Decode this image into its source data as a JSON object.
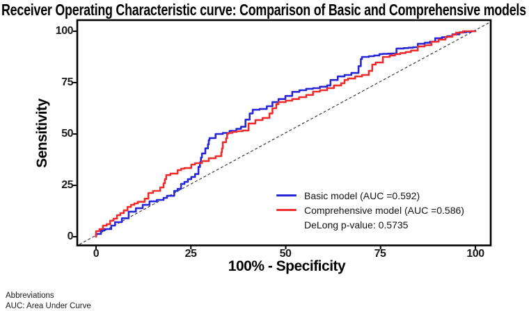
{
  "chart_data": {
    "type": "line",
    "subtype": "roc-curve",
    "title": "Receiver Operating Characteristic curve: Comparison of Basic and Comprehensive models",
    "xlabel": "100% - Specificity",
    "ylabel": "Sensitivity",
    "xlim": [
      -5,
      104
    ],
    "ylim": [
      -4,
      105
    ],
    "x_tick_values": [
      0,
      25,
      50,
      75,
      100
    ],
    "y_tick_values": [
      0,
      25,
      50,
      75,
      100
    ],
    "x_tick_labels": [
      "0",
      "25",
      "50",
      "75",
      "100"
    ],
    "y_tick_labels": [
      "0",
      "25",
      "50",
      "75",
      "100"
    ],
    "grid": false,
    "reference_line": {
      "description": "diagonal chance line y = x",
      "style": "dashed",
      "color": "#3a3a3a"
    },
    "legend": {
      "position": "bottom-right",
      "note": "DeLong p-value: 0.5735"
    },
    "delong_p_value": "0.5735",
    "series": [
      {
        "name": "Basic model",
        "auc": "0.592",
        "label": "Basic model (AUC =0.592)",
        "color": "#2626d6",
        "points": [
          [
            0,
            0
          ],
          [
            1.3,
            1.4
          ],
          [
            2.2,
            3
          ],
          [
            4,
            3.7
          ],
          [
            5,
            5.4
          ],
          [
            6.8,
            7.1
          ],
          [
            8.6,
            9
          ],
          [
            10.5,
            12.2
          ],
          [
            12.3,
            13.9
          ],
          [
            14.1,
            15.5
          ],
          [
            16,
            17.2
          ],
          [
            17.8,
            17.9
          ],
          [
            18.7,
            18.9
          ],
          [
            20.6,
            19.9
          ],
          [
            21.5,
            22.3
          ],
          [
            22.4,
            23.3
          ],
          [
            23.3,
            25.7
          ],
          [
            24.2,
            26.7
          ],
          [
            25.1,
            28
          ],
          [
            26.1,
            29.1
          ],
          [
            27,
            30.5
          ],
          [
            27.4,
            34
          ],
          [
            27.9,
            38.5
          ],
          [
            28.8,
            40.5
          ],
          [
            29.5,
            43
          ],
          [
            29.9,
            47
          ],
          [
            31.5,
            48
          ],
          [
            33.4,
            50
          ],
          [
            35.2,
            50.5
          ],
          [
            37,
            51.5
          ],
          [
            39.4,
            53.5
          ],
          [
            40.5,
            57
          ],
          [
            41.3,
            60
          ],
          [
            43.1,
            61.8
          ],
          [
            45,
            62.2
          ],
          [
            46.5,
            63.5
          ],
          [
            48.1,
            65.5
          ],
          [
            49.9,
            67
          ],
          [
            51.7,
            68.5
          ],
          [
            53.6,
            70.5
          ],
          [
            55.4,
            71.3
          ],
          [
            57.2,
            72
          ],
          [
            59,
            72.3
          ],
          [
            60.9,
            73
          ],
          [
            61.8,
            73.6
          ],
          [
            63.7,
            76.3
          ],
          [
            65.5,
            78
          ],
          [
            67.3,
            78.7
          ],
          [
            69.2,
            79.7
          ],
          [
            69.8,
            83
          ],
          [
            70.1,
            86.5
          ],
          [
            71.9,
            87.5
          ],
          [
            74.7,
            88.2
          ],
          [
            75.6,
            88.9
          ],
          [
            79.2,
            89.2
          ],
          [
            81.1,
            91.6
          ],
          [
            84.8,
            92.2
          ],
          [
            86.6,
            93.9
          ],
          [
            89.4,
            94.9
          ],
          [
            91.2,
            96.6
          ],
          [
            93.9,
            97.6
          ],
          [
            95.8,
            98.5
          ],
          [
            97.6,
            99.5
          ],
          [
            100,
            100
          ]
        ]
      },
      {
        "name": "Comprehensive model",
        "auc": "0.586",
        "label": "Comprehensive model (AUC =0.586)",
        "color": "#ee2c2c",
        "points": [
          [
            0,
            0
          ],
          [
            0.9,
            2.7
          ],
          [
            1.8,
            3.7
          ],
          [
            2.8,
            5.4
          ],
          [
            3.7,
            6.1
          ],
          [
            4.6,
            7.8
          ],
          [
            5.5,
            8.8
          ],
          [
            6.4,
            10.5
          ],
          [
            7.3,
            11.5
          ],
          [
            8.3,
            12.8
          ],
          [
            9.2,
            14.5
          ],
          [
            10.1,
            15.5
          ],
          [
            11,
            16.2
          ],
          [
            12.8,
            17
          ],
          [
            13.8,
            18.5
          ],
          [
            15,
            21.3
          ],
          [
            16.9,
            22.3
          ],
          [
            17.8,
            24
          ],
          [
            18.5,
            28
          ],
          [
            19.6,
            30
          ],
          [
            21.5,
            30.7
          ],
          [
            22.4,
            32.4
          ],
          [
            23.3,
            33.1
          ],
          [
            25.1,
            33.4
          ],
          [
            26.1,
            35.1
          ],
          [
            27.9,
            35.8
          ],
          [
            29.7,
            36.8
          ],
          [
            31.5,
            38.2
          ],
          [
            33,
            39.2
          ],
          [
            33.4,
            43
          ],
          [
            34.3,
            46
          ],
          [
            34.8,
            50
          ],
          [
            37.1,
            51
          ],
          [
            40.2,
            51.7
          ],
          [
            42,
            55.1
          ],
          [
            43.9,
            56.8
          ],
          [
            45.7,
            57.8
          ],
          [
            46.5,
            60
          ],
          [
            47.5,
            62.5
          ],
          [
            48.1,
            64.5
          ],
          [
            50,
            65.5
          ],
          [
            51.7,
            66.2
          ],
          [
            53.5,
            67
          ],
          [
            55.4,
            67.9
          ],
          [
            57.2,
            69
          ],
          [
            59,
            70.6
          ],
          [
            60.9,
            71.3
          ],
          [
            62.7,
            72.3
          ],
          [
            64.6,
            73.6
          ],
          [
            65.5,
            74.7
          ],
          [
            66.4,
            76.3
          ],
          [
            68.3,
            77
          ],
          [
            70.1,
            78
          ],
          [
            71.9,
            78.7
          ],
          [
            72.8,
            80.7
          ],
          [
            73.7,
            83.8
          ],
          [
            75.6,
            84.8
          ],
          [
            77.4,
            87.5
          ],
          [
            80.2,
            88.9
          ],
          [
            83,
            89.9
          ],
          [
            84.8,
            90.6
          ],
          [
            86.6,
            92.6
          ],
          [
            88.4,
            93.2
          ],
          [
            90.3,
            94.9
          ],
          [
            92.1,
            95.9
          ],
          [
            93.9,
            97.3
          ],
          [
            94.9,
            98.3
          ],
          [
            96.7,
            99.3
          ],
          [
            98.5,
            100
          ],
          [
            100,
            100
          ]
        ]
      }
    ]
  },
  "footnotes": {
    "header": "Abbreviations",
    "auc_line": "AUC: Area Under Curve"
  }
}
